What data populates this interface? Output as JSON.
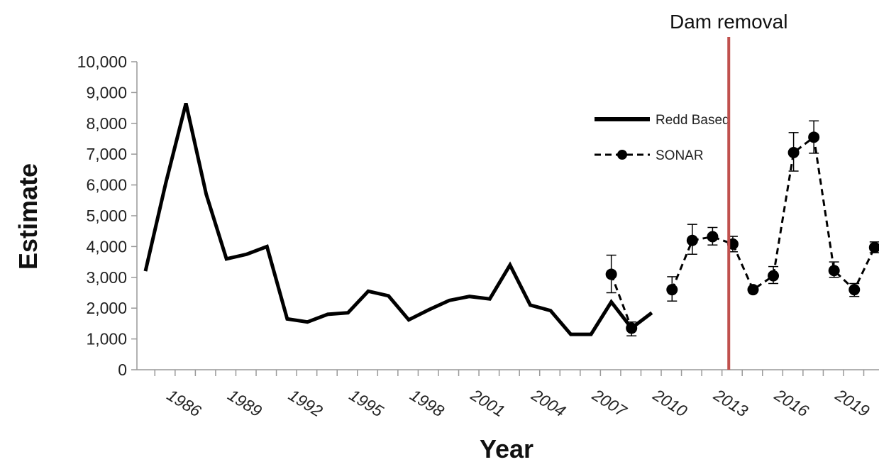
{
  "chart_data": {
    "type": "line",
    "xlabel": "Year",
    "ylabel": "Estimate",
    "xlim": [
      1985,
      2021
    ],
    "ylim": [
      0,
      10000
    ],
    "y_ticks": [
      0,
      1000,
      2000,
      3000,
      4000,
      5000,
      6000,
      7000,
      8000,
      9000,
      10000
    ],
    "y_tick_labels": [
      "0",
      "1,000",
      "2,000",
      "3,000",
      "4,000",
      "5,000",
      "6,000",
      "7,000",
      "8,000",
      "9,000",
      "10,000"
    ],
    "x_tick_labels": [
      "1986",
      "1989",
      "1992",
      "1995",
      "1998",
      "2001",
      "2004",
      "2007",
      "2010",
      "2013",
      "2016",
      "2019"
    ],
    "x_tick_values": [
      1986,
      1989,
      1992,
      1995,
      1998,
      2001,
      2004,
      2007,
      2010,
      2013,
      2016,
      2019
    ],
    "legend_position": "top-right",
    "series": [
      {
        "name": "Redd Based",
        "style": "solid",
        "color": "#000000",
        "x": [
          1985,
          1986,
          1987,
          1988,
          1989,
          1990,
          1991,
          1992,
          1993,
          1994,
          1995,
          1996,
          1997,
          1998,
          1999,
          2000,
          2001,
          2002,
          2003,
          2004,
          2005,
          2006,
          2007,
          2008,
          2009,
          2010
        ],
        "y": [
          3200,
          6050,
          8650,
          5700,
          3600,
          3750,
          4000,
          1650,
          1550,
          1800,
          1850,
          2550,
          2400,
          1620,
          1950,
          2250,
          2380,
          2300,
          3400,
          2100,
          1920,
          1150,
          1150,
          2200,
          1350,
          1850
        ]
      },
      {
        "name": "SONAR",
        "style": "dashed",
        "color": "#000000",
        "segments": [
          {
            "x": [
              2008,
              2009
            ],
            "y": [
              3100,
              1350
            ]
          },
          {
            "x": [
              2011,
              2012,
              2013,
              2014,
              2015,
              2016,
              2017,
              2018,
              2019,
              2020,
              2021
            ],
            "y": [
              2600,
              4200,
              4320,
              4080,
              2600,
              3050,
              7050,
              7550,
              3220,
              2600,
              3970
            ]
          }
        ],
        "error_bars": [
          {
            "x": 2008,
            "low": 2500,
            "high": 3720
          },
          {
            "x": 2009,
            "low": 1100,
            "high": 1550
          },
          {
            "x": 2011,
            "low": 2230,
            "high": 3020
          },
          {
            "x": 2012,
            "low": 3750,
            "high": 4720
          },
          {
            "x": 2013,
            "low": 4050,
            "high": 4620
          },
          {
            "x": 2014,
            "low": 3830,
            "high": 4330
          },
          {
            "x": 2015,
            "low": 2600,
            "high": 2600
          },
          {
            "x": 2016,
            "low": 2800,
            "high": 3350
          },
          {
            "x": 2017,
            "low": 6450,
            "high": 7700
          },
          {
            "x": 2018,
            "low": 7030,
            "high": 8080
          },
          {
            "x": 2019,
            "low": 3000,
            "high": 3500
          },
          {
            "x": 2020,
            "low": 2380,
            "high": 2800
          },
          {
            "x": 2021,
            "low": 3800,
            "high": 4150
          }
        ]
      }
    ],
    "annotations": [
      {
        "text": "Dam removal",
        "x": 2013.8,
        "color": "#c0504d"
      }
    ]
  }
}
